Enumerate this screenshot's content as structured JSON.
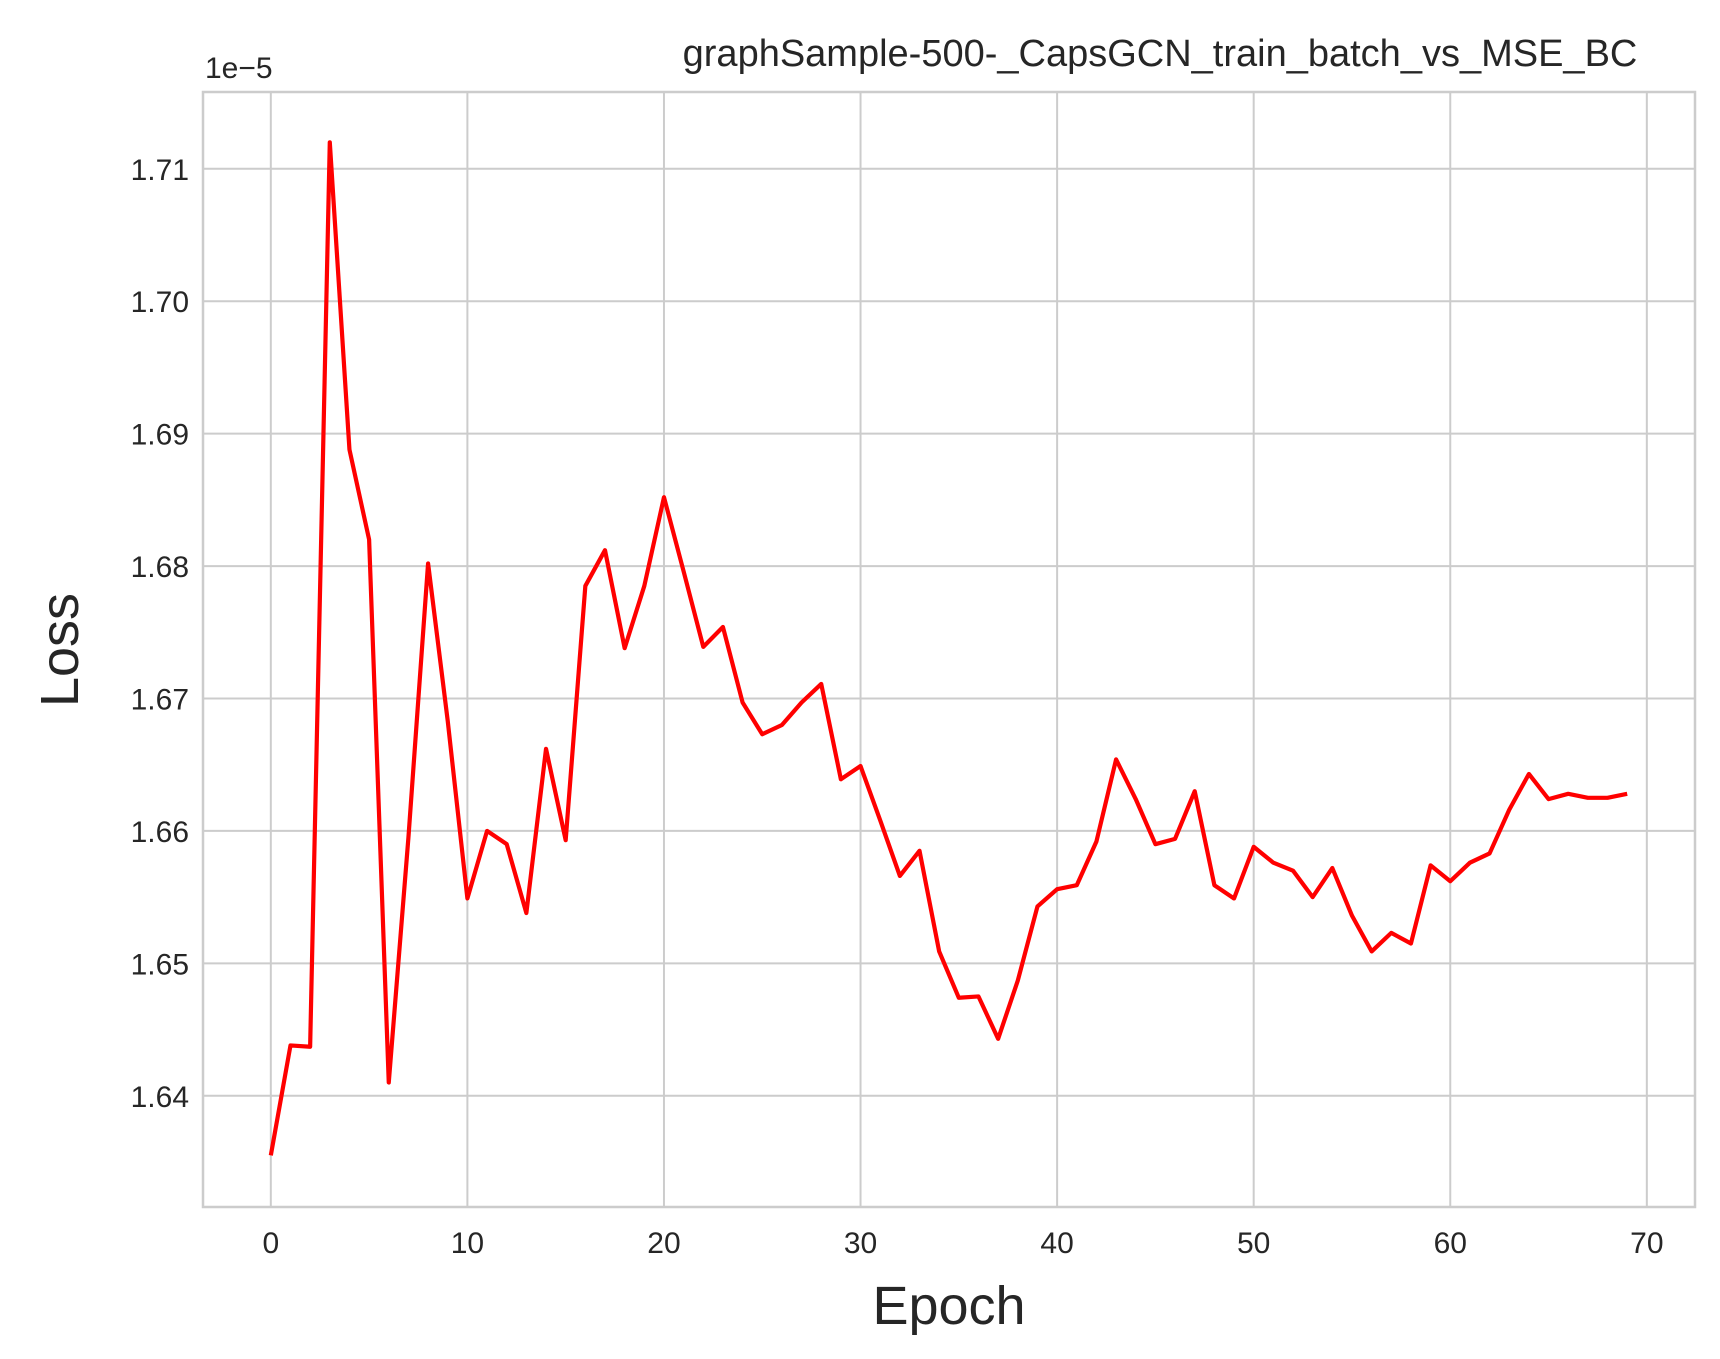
{
  "chart_data": {
    "type": "line",
    "title": "graphSample-500-_CapsGCN_train_batch_vs_MSE_BC",
    "xlabel": "Epoch",
    "ylabel": "Loss",
    "y_offset_label": "1e−5",
    "xlim": [
      -3.45,
      72.45
    ],
    "ylim": [
      1.6316,
      1.7158
    ],
    "x_ticks": [
      0,
      10,
      20,
      30,
      40,
      50,
      60,
      70
    ],
    "x_tick_labels": [
      "0",
      "10",
      "20",
      "30",
      "40",
      "50",
      "60",
      "70"
    ],
    "y_ticks": [
      1.64,
      1.65,
      1.66,
      1.67,
      1.68,
      1.69,
      1.7,
      1.71
    ],
    "y_tick_labels": [
      "1.64",
      "1.65",
      "1.66",
      "1.67",
      "1.68",
      "1.69",
      "1.70",
      "1.71"
    ],
    "grid": true,
    "line_color": "#ff0000",
    "series": [
      {
        "name": "train_batch_vs_MSE_BC",
        "x": [
          0,
          1,
          2,
          3,
          4,
          5,
          6,
          7,
          8,
          9,
          10,
          11,
          12,
          13,
          14,
          15,
          16,
          17,
          18,
          19,
          20,
          21,
          22,
          23,
          24,
          25,
          26,
          27,
          28,
          29,
          30,
          31,
          32,
          33,
          34,
          35,
          36,
          37,
          38,
          39,
          40,
          41,
          42,
          43,
          44,
          45,
          46,
          47,
          48,
          49,
          50,
          51,
          52,
          53,
          54,
          55,
          56,
          57,
          58,
          59,
          60,
          61,
          62,
          63,
          64,
          65,
          66,
          67,
          68,
          69
        ],
        "values": [
          1.6355,
          1.6438,
          1.6437,
          1.712,
          1.6888,
          1.682,
          1.641,
          1.6595,
          1.6802,
          1.6683,
          1.6549,
          1.66,
          1.659,
          1.6538,
          1.6662,
          1.6593,
          1.6785,
          1.6812,
          1.6738,
          1.6785,
          1.6852,
          1.6796,
          1.6739,
          1.6754,
          1.6697,
          1.6673,
          1.668,
          1.6697,
          1.6711,
          1.6639,
          1.6649,
          1.6608,
          1.6566,
          1.6585,
          1.6509,
          1.6474,
          1.6475,
          1.6443,
          1.6487,
          1.6543,
          1.6556,
          1.6559,
          1.6592,
          1.6654,
          1.6624,
          1.659,
          1.6594,
          1.663,
          1.6559,
          1.6549,
          1.6588,
          1.6576,
          1.657,
          1.655,
          1.6572,
          1.6536,
          1.6509,
          1.6523,
          1.6515,
          1.6574,
          1.6562,
          1.6576,
          1.6583,
          1.6616,
          1.6643,
          1.6624,
          1.6628,
          1.6625,
          1.6625,
          1.6628
        ]
      }
    ]
  }
}
